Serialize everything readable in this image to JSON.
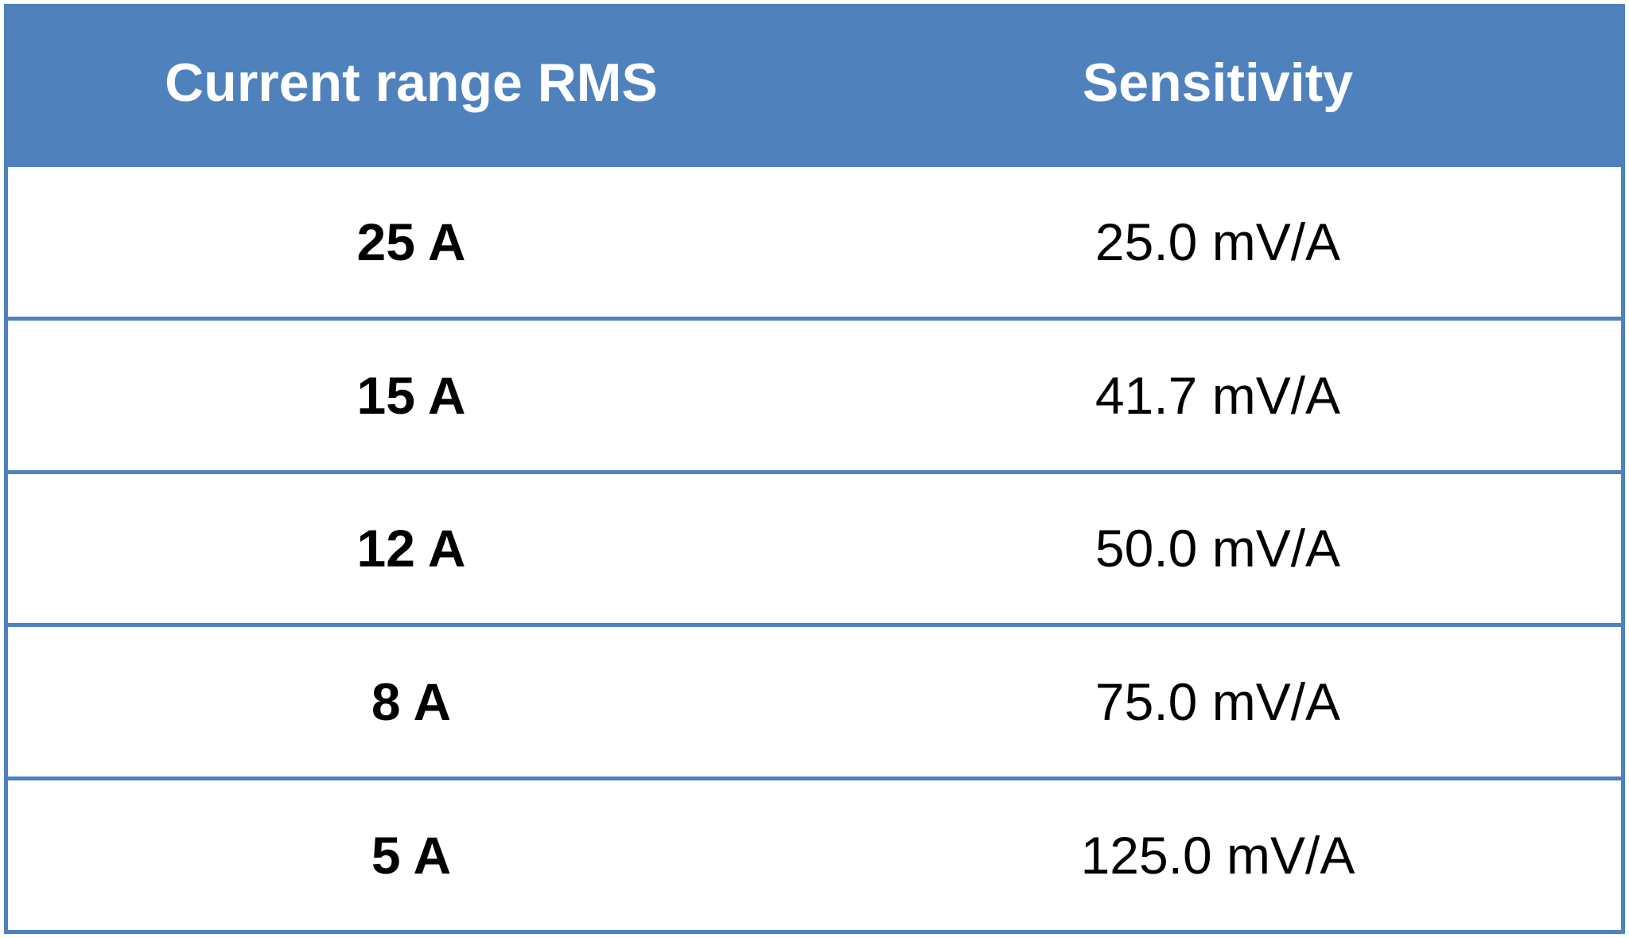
{
  "table": {
    "header": [
      "Current range RMS",
      "Sensitivity"
    ],
    "rows": [
      [
        "25 A",
        "25.0 mV/A"
      ],
      [
        "15 A",
        "41.7 mV/A"
      ],
      [
        "12 A",
        "50.0 mV/A"
      ],
      [
        "8 A",
        "75.0 mV/A"
      ],
      [
        "5 A",
        "125.0 mV/A"
      ]
    ]
  }
}
